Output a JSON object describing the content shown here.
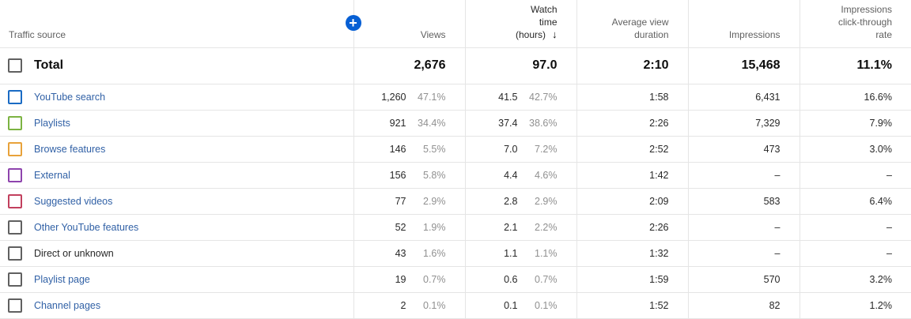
{
  "header": {
    "traffic_source": "Traffic source",
    "add_metric_icon": "plus-circle-icon",
    "views": "Views",
    "watch_time": [
      "Watch",
      "time",
      "(hours)"
    ],
    "sort_icon": "arrow-down-icon",
    "avg_view_duration": [
      "Average view",
      "duration"
    ],
    "impressions": "Impressions",
    "ctr": [
      "Impressions",
      "click-through",
      "rate"
    ]
  },
  "total": {
    "label": "Total",
    "views": "2,676",
    "watch_time": "97.0",
    "avg_duration": "2:10",
    "impressions": "15,468",
    "ctr": "11.1%"
  },
  "rows": [
    {
      "label": "YouTube search",
      "color": "#1a6bc4",
      "link": true,
      "views": "1,260",
      "views_pct": "47.1%",
      "watch": "41.5",
      "watch_pct": "42.7%",
      "avg": "1:58",
      "impr": "6,431",
      "ctr": "16.6%"
    },
    {
      "label": "Playlists",
      "color": "#7cb342",
      "link": true,
      "views": "921",
      "views_pct": "34.4%",
      "watch": "37.4",
      "watch_pct": "38.6%",
      "avg": "2:26",
      "impr": "7,329",
      "ctr": "7.9%"
    },
    {
      "label": "Browse features",
      "color": "#e8a23a",
      "link": true,
      "views": "146",
      "views_pct": "5.5%",
      "watch": "7.0",
      "watch_pct": "7.2%",
      "avg": "2:52",
      "impr": "473",
      "ctr": "3.0%"
    },
    {
      "label": "External",
      "color": "#8e44ad",
      "link": true,
      "views": "156",
      "views_pct": "5.8%",
      "watch": "4.4",
      "watch_pct": "4.6%",
      "avg": "1:42",
      "impr": "–",
      "ctr": "–"
    },
    {
      "label": "Suggested videos",
      "color": "#c2405e",
      "link": true,
      "views": "77",
      "views_pct": "2.9%",
      "watch": "2.8",
      "watch_pct": "2.9%",
      "avg": "2:09",
      "impr": "583",
      "ctr": "6.4%"
    },
    {
      "label": "Other YouTube features",
      "color": "#606060",
      "link": true,
      "views": "52",
      "views_pct": "1.9%",
      "watch": "2.1",
      "watch_pct": "2.2%",
      "avg": "2:26",
      "impr": "–",
      "ctr": "–"
    },
    {
      "label": "Direct or unknown",
      "color": "#606060",
      "link": false,
      "views": "43",
      "views_pct": "1.6%",
      "watch": "1.1",
      "watch_pct": "1.1%",
      "avg": "1:32",
      "impr": "–",
      "ctr": "–"
    },
    {
      "label": "Playlist page",
      "color": "#606060",
      "link": true,
      "views": "19",
      "views_pct": "0.7%",
      "watch": "0.6",
      "watch_pct": "0.7%",
      "avg": "1:59",
      "impr": "570",
      "ctr": "3.2%"
    },
    {
      "label": "Channel pages",
      "color": "#606060",
      "link": true,
      "views": "2",
      "views_pct": "0.1%",
      "watch": "0.1",
      "watch_pct": "0.1%",
      "avg": "1:52",
      "impr": "82",
      "ctr": "1.2%"
    }
  ]
}
